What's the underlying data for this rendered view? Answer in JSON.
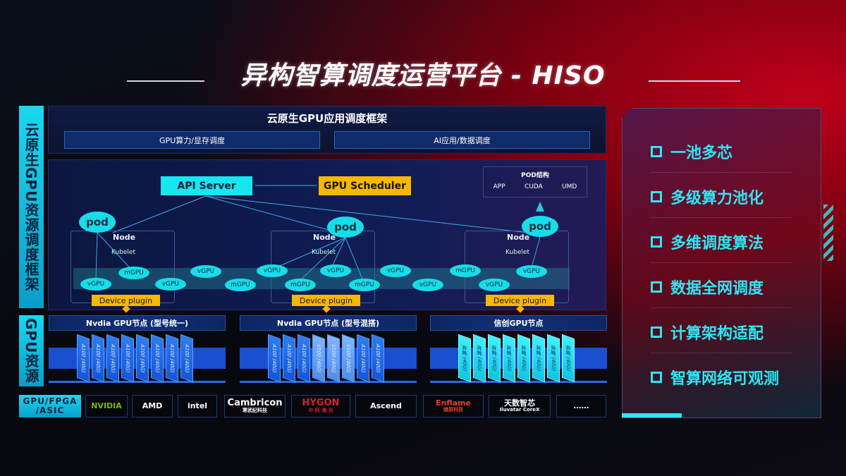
{
  "title": "异构智算调度运营平台 - HISO",
  "left_labels": {
    "framework": "云原生GPU资源调度框架",
    "resources": "GPU资源",
    "hardware": "GPU/FPGA /ASIC"
  },
  "framework": {
    "title": "云原生GPU应用调度框架",
    "sub": [
      "GPU算力/显存调度",
      "AI应用/数据调度"
    ]
  },
  "diagram": {
    "api_server": "API Server",
    "gpu_scheduler": "GPU Scheduler",
    "pod_structure": {
      "title": "POD结构",
      "items": [
        "APP",
        "CUDA",
        "UMD"
      ]
    },
    "pod": "pod",
    "node": "Node",
    "kubelet": "Kubelet",
    "device_plugin": "Device plugin",
    "units": [
      "vGPU",
      "mGPU",
      "vGPU",
      "vGPU",
      "mGPU",
      "vGPU",
      "mGPU",
      "vGPU",
      "mGPU",
      "vGPU",
      "vGPU",
      "mGPU",
      "vGPU",
      "vGPU"
    ]
  },
  "gpu_nodes": [
    {
      "title": "Nvdia GPU节点 (型号统一)",
      "chips": [
        "A100 (40G)",
        "A100 (40G)",
        "A100 (40G)",
        "A100 (40G)",
        "A100 (40G)",
        "A100 (40G)",
        "A100 (40G)",
        "A100 (40G)"
      ]
    },
    {
      "title": "Nvdia GPU节点 (型号混搭)",
      "chips": [
        "A100 (40G)",
        "A100 (40G)",
        "A100 (40G)",
        "V100 (40G)",
        "V100 (40G)",
        "V100 (40G)",
        "A100 (40G)",
        "A100 (40G)"
      ]
    },
    {
      "title": "信创GPU节点",
      "chips": [
        "昇腾 (40G)",
        "昇腾 (40G)",
        "昇腾 (40G)",
        "昇腾 (40G)",
        "昇腾 (40G)",
        "昇腾 (40G)",
        "昇腾 (40G)",
        "昇腾 (40G)"
      ]
    }
  ],
  "vendors": [
    {
      "name": "NVIDIA",
      "sub": ""
    },
    {
      "name": "AMD",
      "sub": ""
    },
    {
      "name": "intel",
      "sub": ""
    },
    {
      "name": "Cambricon",
      "sub": "寒武纪科技"
    },
    {
      "name": "HYGON",
      "sub": "中 科 海 光"
    },
    {
      "name": "Ascend",
      "sub": ""
    },
    {
      "name": "Enflame",
      "sub": "燧原科技"
    },
    {
      "name": "天数智芯",
      "sub": "Iluvatar CoreX"
    },
    {
      "name": "……",
      "sub": ""
    }
  ],
  "features": [
    "一池多芯",
    "多级算力池化",
    "多维调度算法",
    "数据全网调度",
    "计算架构适配",
    "智算网络可观测"
  ],
  "colors": {
    "cyan": "#17e6ef",
    "orange": "#f6b800",
    "blue": "#1a4fd0",
    "red": "#c0001a"
  }
}
